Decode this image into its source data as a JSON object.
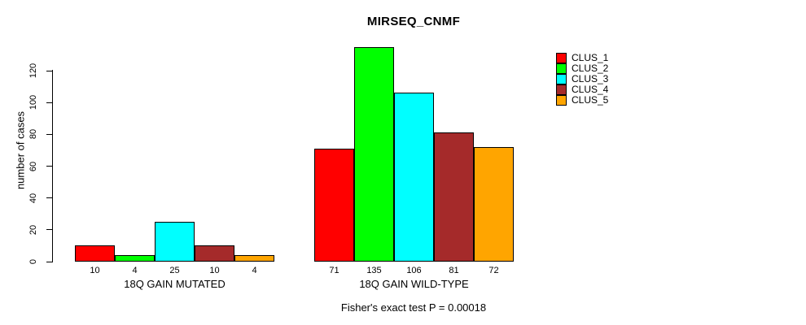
{
  "chart_data": {
    "type": "bar",
    "title": "MIRSEQ_CNMF",
    "ylabel": "number of cases",
    "xlabel": "",
    "yticks": [
      0,
      20,
      40,
      60,
      80,
      100,
      120
    ],
    "ylim": [
      0,
      140
    ],
    "grid": false,
    "legend_position": "top-right",
    "background_color": "#FFFFFF",
    "bar_edge_color": "#000000",
    "series": [
      {
        "name": "CLUS_1",
        "color": "#FF0000"
      },
      {
        "name": "CLUS_2",
        "color": "#00FF00"
      },
      {
        "name": "CLUS_3",
        "color": "#00FFFF"
      },
      {
        "name": "CLUS_4",
        "color": "#A52A2A"
      },
      {
        "name": "CLUS_5",
        "color": "#FFA500"
      }
    ],
    "groups": [
      {
        "label": "18Q GAIN MUTATED",
        "values": [
          10,
          4,
          25,
          10,
          4
        ]
      },
      {
        "label": "18Q GAIN WILD-TYPE",
        "values": [
          71,
          135,
          106,
          81,
          72
        ]
      }
    ],
    "annotation": "Fisher's exact test P = 0.00018"
  }
}
